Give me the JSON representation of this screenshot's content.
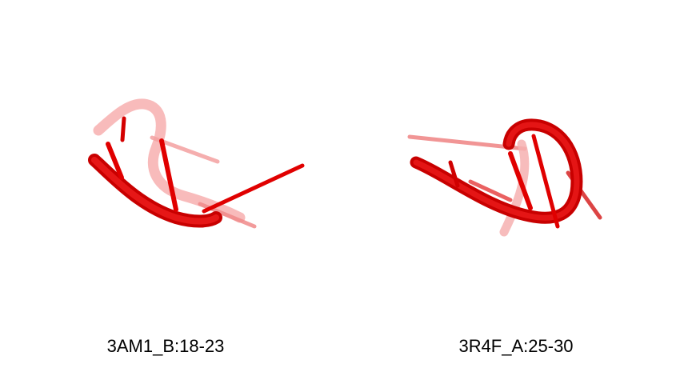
{
  "structures": [
    {
      "id": "left",
      "label": "3AM1_B:18-23",
      "color": "#e00000",
      "faded_color": "#f08080"
    },
    {
      "id": "right",
      "label": "3R4F_A:25-30",
      "color": "#e00000",
      "faded_color": "#f08080"
    }
  ]
}
